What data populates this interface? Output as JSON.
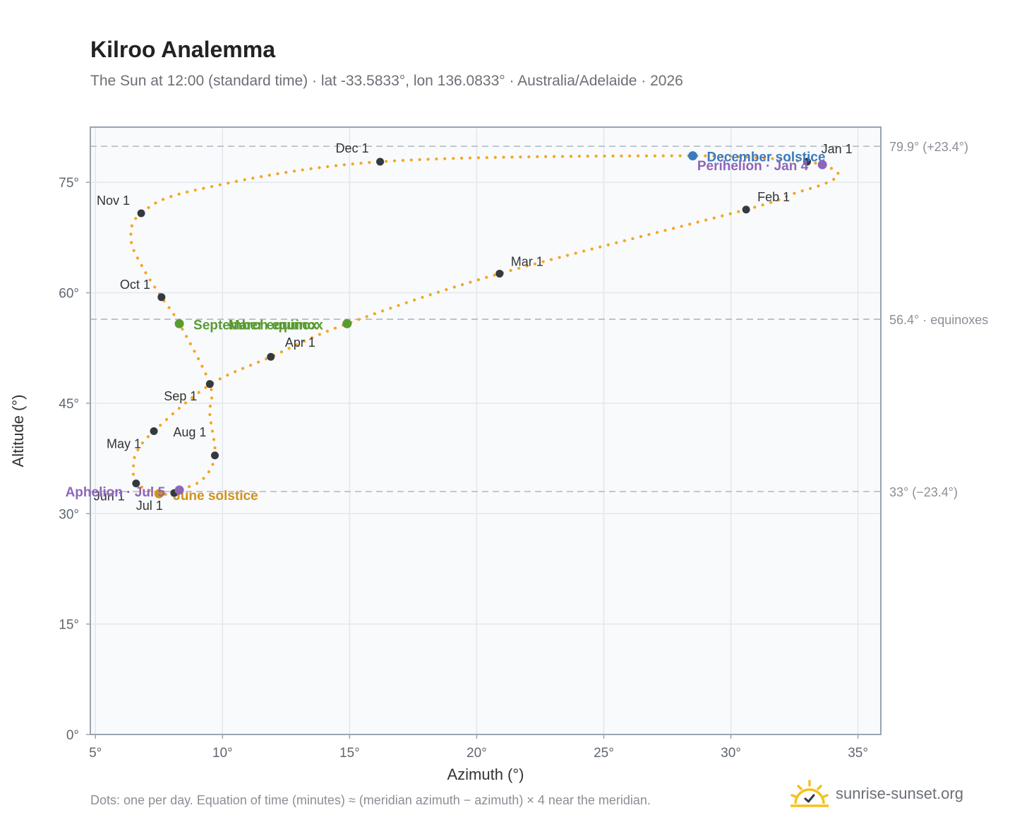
{
  "header": {
    "title": "Kilroo Analemma",
    "subtitle": "The Sun at 12:00 (standard time) · lat -33.5833°, lon 136.0833° · Australia/Adelaide · 2026"
  },
  "footer": {
    "note": "Dots: one per day. Equation of time (minutes) ≈ (meridian azimuth − azimuth) × 4 near the meridian.",
    "brand": "sunrise-sunset.org"
  },
  "colors": {
    "curve": "#f5a623",
    "month_marker": "#343a40",
    "equinox": "#5a9a32",
    "june_solstice": "#d29318",
    "december_solstice": "#3a7bbf",
    "apsis": "#8e66b8",
    "plot_bg": "#f8fafc",
    "grid": "#e3e8ee",
    "reference_line": "#b8c0ca"
  },
  "chart_data": {
    "type": "scatter",
    "title": "Kilroo Analemma",
    "xlabel": "Azimuth (°)",
    "ylabel": "Altitude (°)",
    "xlim": [
      4.8,
      35.9
    ],
    "ylim": [
      0,
      82.5
    ],
    "xticks": [
      5,
      10,
      15,
      20,
      25,
      30,
      35
    ],
    "xtick_labels": [
      "5°",
      "10°",
      "15°",
      "20°",
      "25°",
      "30°",
      "35°"
    ],
    "yticks": [
      0,
      15,
      30,
      45,
      60,
      75
    ],
    "ytick_labels": [
      "0°",
      "15°",
      "30°",
      "45°",
      "60°",
      "75°"
    ],
    "grid": true,
    "reference_lines": [
      {
        "y": 79.9,
        "label": "79.9° (+23.4°)"
      },
      {
        "y": 56.4,
        "label": "56.4° · equinoxes"
      },
      {
        "y": 33.0,
        "label": "33° (−23.4°)"
      }
    ],
    "path_points": [
      {
        "label": "Jan 1",
        "az": 33.0,
        "alt": 77.8
      },
      {
        "label": "Jan 4",
        "az": 33.6,
        "alt": 77.4
      },
      {
        "label": "",
        "az": 34.1,
        "alt": 76.6
      },
      {
        "label": "",
        "az": 34.2,
        "alt": 75.8
      },
      {
        "label": "",
        "az": 33.6,
        "alt": 74.7
      },
      {
        "label": "",
        "az": 32.4,
        "alt": 73.4
      },
      {
        "label": "Feb 1",
        "az": 30.6,
        "alt": 71.3
      },
      {
        "label": "Mar 1",
        "az": 20.9,
        "alt": 62.6
      },
      {
        "label": "Mar 20",
        "az": 14.9,
        "alt": 55.8
      },
      {
        "label": "Apr 1",
        "az": 11.9,
        "alt": 51.3
      },
      {
        "label": "",
        "az": 9.5,
        "alt": 47.5
      },
      {
        "label": "May 1",
        "az": 7.3,
        "alt": 41.2
      },
      {
        "label": "",
        "az": 6.6,
        "alt": 38.2
      },
      {
        "label": "",
        "az": 6.5,
        "alt": 35.8
      },
      {
        "label": "Jun 1",
        "az": 6.6,
        "alt": 34.1
      },
      {
        "label": "Jun 21",
        "az": 7.5,
        "alt": 32.7
      },
      {
        "label": "Jul 1",
        "az": 8.1,
        "alt": 32.8
      },
      {
        "label": "Jul 5",
        "az": 8.3,
        "alt": 33.2
      },
      {
        "label": "",
        "az": 9.2,
        "alt": 34.6
      },
      {
        "label": "Aug 1",
        "az": 9.7,
        "alt": 37.9
      },
      {
        "label": "",
        "az": 9.5,
        "alt": 43.5
      },
      {
        "label": "Sep 1",
        "az": 9.5,
        "alt": 47.6
      },
      {
        "label": "Sep 23",
        "az": 8.3,
        "alt": 55.8
      },
      {
        "label": "Oct 1",
        "az": 7.6,
        "alt": 59.4
      },
      {
        "label": "",
        "az": 6.9,
        "alt": 63.2
      },
      {
        "label": "",
        "az": 6.4,
        "alt": 67.2
      },
      {
        "label": "Nov 1",
        "az": 6.8,
        "alt": 70.8
      },
      {
        "label": "",
        "az": 9.0,
        "alt": 74.0
      },
      {
        "label": "Dec 1",
        "az": 16.2,
        "alt": 77.8
      },
      {
        "label": "Dec 21",
        "az": 28.5,
        "alt": 78.6
      },
      {
        "label": "",
        "az": 33.0,
        "alt": 77.8
      }
    ],
    "month_markers": [
      {
        "label": "Jan 1",
        "az": 33.0,
        "alt": 77.8
      },
      {
        "label": "Feb 1",
        "az": 30.6,
        "alt": 71.3
      },
      {
        "label": "Mar 1",
        "az": 20.9,
        "alt": 62.6
      },
      {
        "label": "Apr 1",
        "az": 11.9,
        "alt": 51.3
      },
      {
        "label": "May 1",
        "az": 7.3,
        "alt": 41.2
      },
      {
        "label": "Jun 1",
        "az": 6.6,
        "alt": 34.1
      },
      {
        "label": "Jul 1",
        "az": 8.1,
        "alt": 32.8
      },
      {
        "label": "Aug 1",
        "az": 9.7,
        "alt": 37.9
      },
      {
        "label": "Sep 1",
        "az": 9.5,
        "alt": 47.6
      },
      {
        "label": "Oct 1",
        "az": 7.6,
        "alt": 59.4
      },
      {
        "label": "Nov 1",
        "az": 6.8,
        "alt": 70.8
      },
      {
        "label": "Dec 1",
        "az": 16.2,
        "alt": 77.8
      }
    ],
    "events": [
      {
        "label": "March equinox",
        "az": 14.9,
        "alt": 55.8,
        "kind": "equinox"
      },
      {
        "label": "September equinox",
        "az": 8.3,
        "alt": 55.8,
        "kind": "equinox"
      },
      {
        "label": "June solstice",
        "az": 7.5,
        "alt": 32.7,
        "kind": "june_solstice"
      },
      {
        "label": "December solstice",
        "az": 28.5,
        "alt": 78.6,
        "kind": "december_solstice"
      },
      {
        "label": "Perihelion · Jan 4",
        "az": 33.6,
        "alt": 77.4,
        "kind": "apsis"
      },
      {
        "label": "Aphelion · Jul 5",
        "az": 8.3,
        "alt": 33.2,
        "kind": "apsis"
      }
    ]
  }
}
